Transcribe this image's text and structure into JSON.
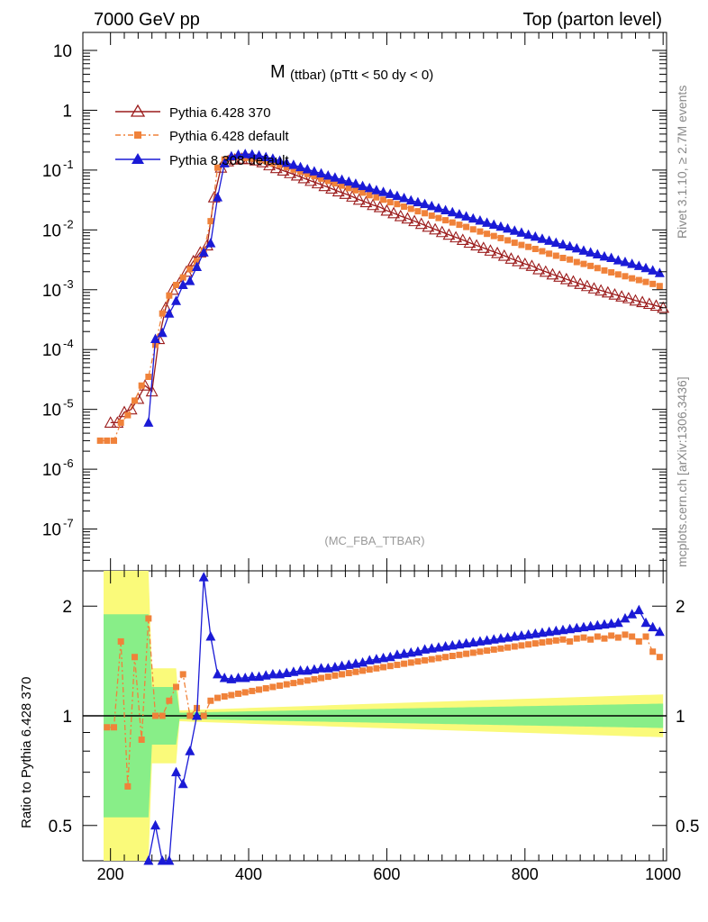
{
  "header": {
    "left": "7000 GeV pp",
    "right": "Top (parton level)"
  },
  "side": {
    "rivet": "Rivet 3.1.10, ≥ 2.7M events",
    "mcplots": "mcplots.cern.ch [arXiv:1306.3436]"
  },
  "colors": {
    "p370": "#9b1b1b",
    "pdef": "#f0823a",
    "p8": "#1a1ad6",
    "band_yellow": "#fafa7a",
    "band_green": "#88ee88"
  },
  "chart_data": [
    {
      "type": "line",
      "title_main": "M",
      "title_sub": "(ttbar) (pTtt < 50 dy < 0)",
      "watermark": "(MC_FBA_TTBAR)",
      "xlim": [
        160,
        1005
      ],
      "ylim": [
        2e-08,
        20
      ],
      "log_y": true,
      "y_tick_labels": [
        "10",
        "1",
        "10^-1",
        "10^-2",
        "10^-3",
        "10^-4",
        "10^-5",
        "10^-6",
        "10^-7"
      ],
      "series": [
        {
          "name": "Pythia 6.428 370",
          "color": "#9b1b1b",
          "marker": "open-triangle",
          "x": [
            200,
            210,
            220,
            230,
            240,
            250,
            260,
            270,
            280,
            290,
            300,
            310,
            320,
            330,
            340,
            350,
            360,
            370,
            380,
            390,
            400,
            410,
            420,
            430,
            440,
            450,
            460,
            470,
            480,
            490,
            500,
            510,
            520,
            530,
            540,
            550,
            560,
            570,
            580,
            590,
            600,
            610,
            620,
            630,
            640,
            650,
            660,
            670,
            680,
            690,
            700,
            710,
            720,
            730,
            740,
            750,
            760,
            770,
            780,
            790,
            800,
            810,
            820,
            830,
            840,
            850,
            860,
            870,
            880,
            890,
            900,
            910,
            920,
            930,
            940,
            950,
            960,
            970,
            980,
            990,
            1000
          ],
          "y": [
            6e-06,
            6e-06,
            9e-06,
            1e-05,
            1.5e-05,
            2.5e-05,
            2e-05,
            0.00015,
            0.0005,
            0.001,
            0.0013,
            0.002,
            0.003,
            0.0042,
            0.0055,
            0.035,
            0.11,
            0.14,
            0.15,
            0.155,
            0.152,
            0.145,
            0.135,
            0.12,
            0.108,
            0.098,
            0.089,
            0.081,
            0.073,
            0.066,
            0.06,
            0.054,
            0.049,
            0.044,
            0.04,
            0.036,
            0.032,
            0.029,
            0.026,
            0.024,
            0.021,
            0.019,
            0.017,
            0.0155,
            0.014,
            0.0126,
            0.0113,
            0.0102,
            0.0092,
            0.0083,
            0.0075,
            0.0068,
            0.0061,
            0.0055,
            0.005,
            0.0045,
            0.0041,
            0.0037,
            0.0033,
            0.003,
            0.0027,
            0.0025,
            0.0022,
            0.002,
            0.0018,
            0.00165,
            0.0015,
            0.00137,
            0.00125,
            0.00115,
            0.00105,
            0.00097,
            0.0009,
            0.00083,
            0.00077,
            0.00072,
            0.00066,
            0.00062,
            0.00058,
            0.00054,
            0.0005
          ]
        },
        {
          "name": "Pythia 6.428 default",
          "color": "#f0823a",
          "marker": "filled-square",
          "x": [
            185,
            195,
            205,
            215,
            225,
            235,
            245,
            255,
            265,
            275,
            285,
            295,
            305,
            315,
            325,
            335,
            345,
            355,
            365,
            375,
            385,
            395,
            405,
            415,
            425,
            435,
            445,
            455,
            465,
            475,
            485,
            495,
            505,
            515,
            525,
            535,
            545,
            555,
            565,
            575,
            585,
            595,
            605,
            615,
            625,
            635,
            645,
            655,
            665,
            675,
            685,
            695,
            705,
            715,
            725,
            735,
            745,
            755,
            765,
            775,
            785,
            795,
            805,
            815,
            825,
            835,
            845,
            855,
            865,
            875,
            885,
            895,
            905,
            915,
            925,
            935,
            945,
            955,
            965,
            975,
            985,
            995
          ],
          "y": [
            3e-06,
            3e-06,
            3e-06,
            6e-06,
            8e-06,
            1.4e-05,
            2.5e-05,
            3.5e-05,
            0.00012,
            0.0004,
            0.0008,
            0.0012,
            0.0016,
            0.0022,
            0.003,
            0.0045,
            0.014,
            0.11,
            0.15,
            0.16,
            0.165,
            0.16,
            0.155,
            0.15,
            0.142,
            0.13,
            0.122,
            0.112,
            0.102,
            0.094,
            0.086,
            0.079,
            0.072,
            0.066,
            0.06,
            0.055,
            0.05,
            0.046,
            0.042,
            0.038,
            0.035,
            0.032,
            0.029,
            0.027,
            0.0245,
            0.0225,
            0.0205,
            0.019,
            0.0173,
            0.0158,
            0.0145,
            0.0133,
            0.0122,
            0.0112,
            0.0102,
            0.0094,
            0.0086,
            0.0079,
            0.0073,
            0.0067,
            0.0061,
            0.0056,
            0.0052,
            0.0048,
            0.0044,
            0.004,
            0.0037,
            0.0034,
            0.0032,
            0.0029,
            0.0027,
            0.0025,
            0.0023,
            0.0021,
            0.00195,
            0.0018,
            0.00168,
            0.00155,
            0.00145,
            0.00135,
            0.00125,
            0.00115
          ]
        },
        {
          "name": "Pythia 8.308 default",
          "color": "#1a1ad6",
          "marker": "filled-triangle",
          "x": [
            255,
            265,
            275,
            285,
            295,
            305,
            315,
            325,
            335,
            345,
            355,
            365,
            375,
            385,
            395,
            405,
            415,
            425,
            435,
            445,
            455,
            465,
            475,
            485,
            495,
            505,
            515,
            525,
            535,
            545,
            555,
            565,
            575,
            585,
            595,
            605,
            615,
            625,
            635,
            645,
            655,
            665,
            675,
            685,
            695,
            705,
            715,
            725,
            735,
            745,
            755,
            765,
            775,
            785,
            795,
            805,
            815,
            825,
            835,
            845,
            855,
            865,
            875,
            885,
            895,
            905,
            915,
            925,
            935,
            945,
            955,
            965,
            975,
            985,
            995
          ],
          "y": [
            6e-06,
            0.00015,
            0.00019,
            0.0004,
            0.00065,
            0.0012,
            0.0014,
            0.0024,
            0.0042,
            0.006,
            0.035,
            0.13,
            0.17,
            0.18,
            0.185,
            0.182,
            0.175,
            0.165,
            0.155,
            0.143,
            0.132,
            0.122,
            0.112,
            0.103,
            0.095,
            0.088,
            0.081,
            0.075,
            0.069,
            0.064,
            0.059,
            0.054,
            0.05,
            0.046,
            0.043,
            0.04,
            0.037,
            0.034,
            0.031,
            0.029,
            0.027,
            0.025,
            0.023,
            0.0213,
            0.0197,
            0.0182,
            0.0168,
            0.0155,
            0.0143,
            0.0132,
            0.0122,
            0.0113,
            0.0105,
            0.0097,
            0.009,
            0.0083,
            0.0077,
            0.0071,
            0.0066,
            0.0061,
            0.0057,
            0.0053,
            0.0049,
            0.0045,
            0.0042,
            0.0039,
            0.0036,
            0.0034,
            0.0031,
            0.0029,
            0.0027,
            0.0025,
            0.0023,
            0.0021,
            0.0019
          ]
        }
      ]
    },
    {
      "type": "line",
      "ylabel": "Ratio to Pythia 6.428 370",
      "xlim": [
        160,
        1005
      ],
      "ylim": [
        0.4,
        2.5
      ],
      "log_y": true,
      "x_tick_labels": [
        "200",
        "400",
        "600",
        "800",
        "1000"
      ],
      "y_tick_labels": [
        "0.5",
        "1",
        "2"
      ],
      "reference": 1,
      "series": [
        {
          "name": "Pythia 6.428 default",
          "color": "#f0823a",
          "x": [
            195,
            205,
            215,
            225,
            235,
            245,
            255,
            265,
            275,
            285,
            295,
            305,
            315,
            325,
            335,
            345,
            355,
            365,
            375,
            385,
            395,
            405,
            415,
            425,
            435,
            445,
            455,
            465,
            475,
            485,
            495,
            505,
            515,
            525,
            535,
            545,
            555,
            565,
            575,
            585,
            595,
            605,
            615,
            625,
            635,
            645,
            655,
            665,
            675,
            685,
            695,
            705,
            715,
            725,
            735,
            745,
            755,
            765,
            775,
            785,
            795,
            805,
            815,
            825,
            835,
            845,
            855,
            865,
            875,
            885,
            895,
            905,
            915,
            925,
            935,
            945,
            955,
            965,
            975,
            985,
            995
          ],
          "y": [
            0.93,
            0.93,
            1.6,
            0.64,
            1.45,
            0.86,
            1.85,
            1.0,
            1.0,
            1.1,
            1.2,
            1.3,
            1.0,
            1.05,
            1.0,
            1.1,
            1.12,
            1.13,
            1.14,
            1.15,
            1.16,
            1.17,
            1.18,
            1.19,
            1.2,
            1.21,
            1.22,
            1.23,
            1.24,
            1.25,
            1.26,
            1.27,
            1.28,
            1.29,
            1.3,
            1.31,
            1.32,
            1.33,
            1.34,
            1.35,
            1.36,
            1.37,
            1.38,
            1.39,
            1.4,
            1.41,
            1.42,
            1.43,
            1.44,
            1.45,
            1.46,
            1.47,
            1.48,
            1.49,
            1.5,
            1.51,
            1.52,
            1.53,
            1.54,
            1.55,
            1.56,
            1.57,
            1.58,
            1.59,
            1.6,
            1.61,
            1.62,
            1.6,
            1.63,
            1.64,
            1.62,
            1.65,
            1.63,
            1.66,
            1.64,
            1.67,
            1.65,
            1.6,
            1.65,
            1.5,
            1.45
          ]
        },
        {
          "name": "Pythia 8.308 default",
          "color": "#1a1ad6",
          "x": [
            255,
            265,
            275,
            285,
            295,
            305,
            315,
            325,
            335,
            345,
            355,
            365,
            375,
            385,
            395,
            405,
            415,
            425,
            435,
            445,
            455,
            465,
            475,
            485,
            495,
            505,
            515,
            525,
            535,
            545,
            555,
            565,
            575,
            585,
            595,
            605,
            615,
            625,
            635,
            645,
            655,
            665,
            675,
            685,
            695,
            705,
            715,
            725,
            735,
            745,
            755,
            765,
            775,
            785,
            795,
            805,
            815,
            825,
            835,
            845,
            855,
            865,
            875,
            885,
            895,
            905,
            915,
            925,
            935,
            945,
            955,
            965,
            975,
            985,
            995
          ],
          "y": [
            0.4,
            0.5,
            0.4,
            0.4,
            0.7,
            0.65,
            0.8,
            1.0,
            2.4,
            1.65,
            1.3,
            1.27,
            1.26,
            1.27,
            1.27,
            1.28,
            1.28,
            1.29,
            1.3,
            1.3,
            1.31,
            1.32,
            1.33,
            1.33,
            1.34,
            1.35,
            1.35,
            1.36,
            1.37,
            1.38,
            1.39,
            1.4,
            1.42,
            1.43,
            1.44,
            1.45,
            1.47,
            1.48,
            1.49,
            1.5,
            1.52,
            1.53,
            1.54,
            1.55,
            1.56,
            1.57,
            1.58,
            1.59,
            1.6,
            1.61,
            1.62,
            1.63,
            1.64,
            1.65,
            1.66,
            1.67,
            1.68,
            1.69,
            1.7,
            1.71,
            1.72,
            1.73,
            1.74,
            1.75,
            1.76,
            1.77,
            1.78,
            1.79,
            1.8,
            1.85,
            1.9,
            1.95,
            1.8,
            1.75,
            1.7
          ]
        }
      ]
    }
  ]
}
